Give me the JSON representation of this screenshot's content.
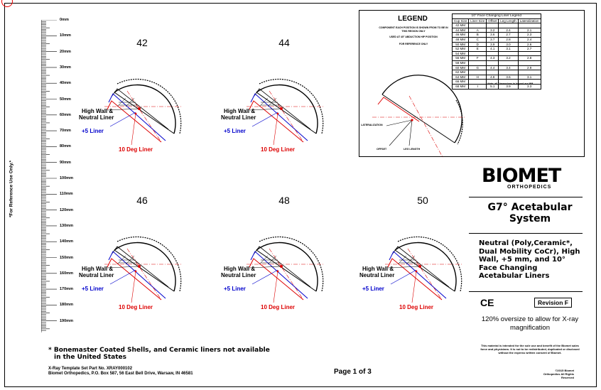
{
  "ruler": {
    "caption": "*For Reference Use Only.*",
    "ticks": [
      "0mm",
      "10mm",
      "20mm",
      "30mm",
      "40mm",
      "50mm",
      "60mm",
      "70mm",
      "80mm",
      "90mm",
      "100mm",
      "110mm",
      "120mm",
      "130mm",
      "140mm",
      "150mm",
      "160mm",
      "170mm",
      "180mm",
      "190mm"
    ]
  },
  "cells": [
    {
      "size": "42"
    },
    {
      "size": "44"
    },
    {
      "size": "46"
    },
    {
      "size": "48"
    },
    {
      "size": "50"
    }
  ],
  "labels": {
    "high_wall": "High Wall &",
    "neutral": "Neutral Liner",
    "plus5": "+5 Liner",
    "ten_deg": "10 Deg Liner"
  },
  "legend": {
    "title": "LEGEND",
    "note1": "COMPONENT EACH POSITION IS SHOWN FROM TO BE IN THIS REGION ONLY",
    "note2": "USED AT 45° ABDUCTION HIP POSITION",
    "note3": "FOR REFERENCE ONLY",
    "table_caption": "10° Face Changing Liner Legend",
    "headers": [
      "Cup Size",
      "Liner Size",
      "Offset",
      "Leg Length",
      "Lateralization"
    ],
    "rows": [
      [
        "42 MM",
        "",
        "",
        "",
        ""
      ],
      [
        "44 MM",
        "A",
        "3.2",
        "2.4",
        "2.1"
      ],
      [
        "46 MM",
        "B",
        "3.6",
        "2.7",
        "2.3"
      ],
      [
        "48 MM",
        "C",
        "3.7",
        "2.8",
        "2.4"
      ],
      [
        "50 MM",
        "D",
        "3.9",
        "3.0",
        "2.6"
      ],
      [
        "52 MM",
        "E",
        "4.1",
        "3.1",
        "2.7"
      ],
      [
        "54 MM",
        "",
        "",
        "",
        ""
      ],
      [
        "56 MM",
        "F",
        "4.3",
        "3.2",
        "2.8"
      ],
      [
        "58 MM",
        "",
        "",
        "",
        ""
      ],
      [
        "60 MM",
        "G",
        "4.4",
        "3.4",
        "2.9"
      ],
      [
        "62 MM",
        "",
        "",
        "",
        ""
      ],
      [
        "64 MM",
        "H",
        "4.8",
        "3.6",
        "3.1"
      ],
      [
        "66 MM",
        "",
        "",
        "",
        ""
      ],
      [
        "68 MM",
        "I",
        "5.1",
        "3.9",
        "3.3"
      ]
    ],
    "footnote": "* Note: all Dimensions in legend are MM.",
    "diagram_labels": {
      "lateralization": "LATERALIZATION",
      "offset": "OFFSET",
      "leg_length": "LEG LENGTH"
    }
  },
  "brand": {
    "logo": "BIOMET",
    "sub": "ORTHOPEDICS",
    "system_title": "G7° Acetabular System",
    "description": "Neutral (Poly,Ceramic*, Dual Mobility CoCr), High Wall, +5 mm, and 10° Face Changing Acetabular Liners",
    "ce": "CE",
    "revision": "Revision  F",
    "oversize": "120% oversize to allow for X-ray magnification",
    "fine_print": "This material is intended for the sole use and benefit of the Biomet sales force and physicians. It is not to be redistributed, duplicated or disclosed without the express written consent of Biomet.",
    "copyright": "©2015 Biomet Orthopedics All Rights Reserved"
  },
  "footer": {
    "footnote_line1": "* Bonemaster Coated Shells, and Ceramic liners not available",
    "footnote_line2": "in the United States",
    "part_no": "X-Ray Template Set Part No. XRAY000102",
    "address": "Biomet Orthopedics, P.O. Box 587, 56 East Bell Drive, Warsaw, IN 46581",
    "page": "Page 1 of 3"
  },
  "colors": {
    "red": "#dd0000",
    "blue": "#0000cc",
    "black": "#000000"
  }
}
